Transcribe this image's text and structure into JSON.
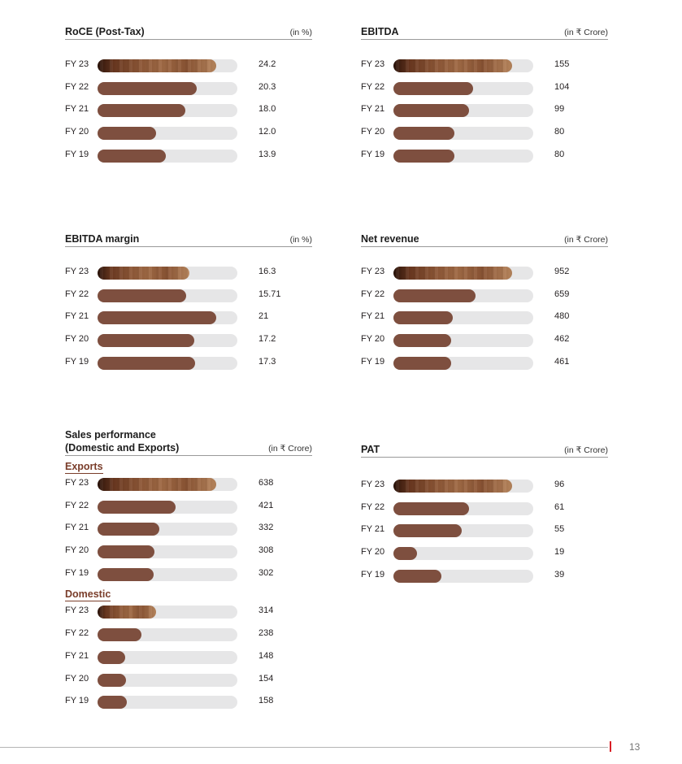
{
  "page": {
    "number": "13"
  },
  "colors": {
    "bar": "#7e4f3f",
    "track": "#e6e6e7",
    "accent": "#d81f26",
    "subheading": "#7a3d2a"
  },
  "chart_data": [
    {
      "type": "bar",
      "title": "RoCE (Post-Tax)",
      "unit": "(in %)",
      "categories": [
        "FY 23",
        "FY 22",
        "FY 21",
        "FY 20",
        "FY 19"
      ],
      "values": [
        24.2,
        20.3,
        18.0,
        12.0,
        13.9
      ],
      "labels": [
        "24.2",
        "20.3",
        "18.0",
        "12.0",
        "13.9"
      ],
      "xlim": [
        0,
        28.6
      ]
    },
    {
      "type": "bar",
      "title": "EBITDA",
      "unit": "(in ₹ Crore)",
      "categories": [
        "FY 23",
        "FY 22",
        "FY 21",
        "FY 20",
        "FY 19"
      ],
      "values": [
        155,
        104,
        99,
        80,
        80
      ],
      "labels": [
        "155",
        "104",
        "99",
        "80",
        "80"
      ],
      "xlim": [
        0,
        183
      ]
    },
    {
      "type": "bar",
      "title": "EBITDA margin",
      "unit": "(in %)",
      "categories": [
        "FY 23",
        "FY 22",
        "FY 21",
        "FY 20",
        "FY 19"
      ],
      "values": [
        16.3,
        15.71,
        21,
        17.2,
        17.3
      ],
      "labels": [
        "16.3",
        "15.71",
        "21",
        "17.2",
        "17.3"
      ],
      "xlim": [
        0,
        24.8
      ]
    },
    {
      "type": "bar",
      "title": "Net revenue",
      "unit": "(in ₹ Crore)",
      "categories": [
        "FY 23",
        "FY 22",
        "FY 21",
        "FY 20",
        "FY 19"
      ],
      "values": [
        952,
        659,
        480,
        462,
        461
      ],
      "labels": [
        "952",
        "659",
        "480",
        "462",
        "461"
      ],
      "xlim": [
        0,
        1125
      ]
    },
    {
      "type": "bar",
      "title": "Sales performance (Domestic and Exports)",
      "unit": "(in ₹ Crore)",
      "categories": [
        "FY 23",
        "FY 22",
        "FY 21",
        "FY 20",
        "FY 19"
      ],
      "series": [
        {
          "name": "Exports",
          "values": [
            638,
            421,
            332,
            308,
            302
          ],
          "labels": [
            "638",
            "421",
            "332",
            "308",
            "302"
          ]
        },
        {
          "name": "Domestic",
          "values": [
            314,
            238,
            148,
            154,
            158
          ],
          "labels": [
            "314",
            "238",
            "148",
            "154",
            "158"
          ]
        }
      ],
      "xlim": [
        0,
        753
      ]
    },
    {
      "type": "bar",
      "title": "PAT",
      "unit": "(in ₹ Crore)",
      "categories": [
        "FY 23",
        "FY 22",
        "FY 21",
        "FY 20",
        "FY 19"
      ],
      "values": [
        96,
        61,
        55,
        19,
        39
      ],
      "labels": [
        "96",
        "61",
        "55",
        "19",
        "39"
      ],
      "xlim": [
        0,
        113
      ]
    }
  ]
}
